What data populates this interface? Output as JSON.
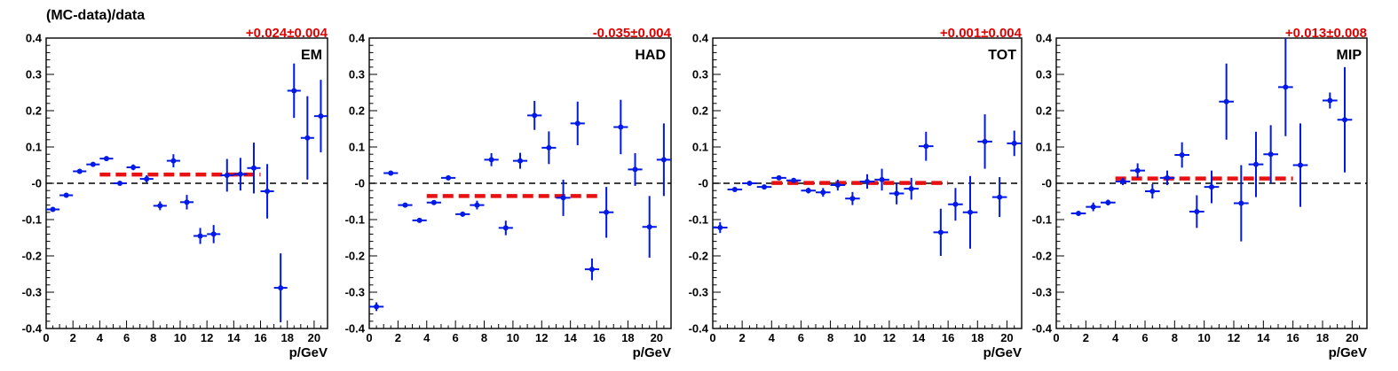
{
  "figure": {
    "ylabel": "(MC-data)/data"
  },
  "colors": {
    "points": "#0019e6",
    "fit": "#e81010",
    "zero": "#000000",
    "fit_text": "#e00000"
  },
  "chart_data": [
    {
      "type": "scatter",
      "panel_label": "EM",
      "fit_label": "+0.024±0.004",
      "xlabel": "p/GeV",
      "xlim": [
        0,
        21
      ],
      "ylim": [
        -0.4,
        0.4
      ],
      "xticks": [
        0,
        2,
        4,
        6,
        8,
        10,
        12,
        14,
        16,
        18,
        20
      ],
      "yticks": [
        "-0.4",
        "-0.3",
        "-0.2",
        "-0.1",
        "-0",
        "0.1",
        "0.2",
        "0.3",
        "0.4"
      ],
      "fit": {
        "x": [
          4,
          16
        ],
        "y": 0.024
      },
      "points": [
        {
          "x": 0.5,
          "y": -0.072,
          "err": 0.006
        },
        {
          "x": 1.5,
          "y": -0.033,
          "err": 0.005
        },
        {
          "x": 2.5,
          "y": 0.033,
          "err": 0.005
        },
        {
          "x": 3.5,
          "y": 0.052,
          "err": 0.005
        },
        {
          "x": 4.5,
          "y": 0.068,
          "err": 0.005
        },
        {
          "x": 5.5,
          "y": 0.0,
          "err": 0.005
        },
        {
          "x": 6.5,
          "y": 0.044,
          "err": 0.008
        },
        {
          "x": 7.5,
          "y": 0.012,
          "err": 0.01
        },
        {
          "x": 8.5,
          "y": -0.062,
          "err": 0.012
        },
        {
          "x": 9.5,
          "y": 0.062,
          "err": 0.018
        },
        {
          "x": 10.5,
          "y": -0.052,
          "err": 0.02
        },
        {
          "x": 11.5,
          "y": -0.145,
          "err": 0.022
        },
        {
          "x": 12.5,
          "y": -0.14,
          "err": 0.025
        },
        {
          "x": 13.5,
          "y": 0.022,
          "err": 0.045
        },
        {
          "x": 14.5,
          "y": 0.025,
          "err": 0.045
        },
        {
          "x": 15.5,
          "y": 0.042,
          "err": 0.07
        },
        {
          "x": 16.5,
          "y": -0.022,
          "err": 0.075
        },
        {
          "x": 17.5,
          "y": -0.288,
          "err": 0.095
        },
        {
          "x": 18.5,
          "y": 0.255,
          "err": 0.075
        },
        {
          "x": 19.5,
          "y": 0.125,
          "err": 0.115
        },
        {
          "x": 20.5,
          "y": 0.185,
          "err": 0.1
        }
      ]
    },
    {
      "type": "scatter",
      "panel_label": "HAD",
      "fit_label": "-0.035±0.004",
      "xlabel": "p/GeV",
      "xlim": [
        0,
        21
      ],
      "ylim": [
        -0.4,
        0.4
      ],
      "xticks": [
        0,
        2,
        4,
        6,
        8,
        10,
        12,
        14,
        16,
        18,
        20
      ],
      "yticks": [
        "-0.4",
        "-0.3",
        "-0.2",
        "-0.1",
        "-0",
        "0.1",
        "0.2",
        "0.3",
        "0.4"
      ],
      "fit": {
        "x": [
          4,
          16
        ],
        "y": -0.035
      },
      "points": [
        {
          "x": 0.5,
          "y": -0.34,
          "err": 0.012
        },
        {
          "x": 1.5,
          "y": 0.028,
          "err": 0.005
        },
        {
          "x": 2.5,
          "y": -0.06,
          "err": 0.005
        },
        {
          "x": 3.5,
          "y": -0.102,
          "err": 0.005
        },
        {
          "x": 4.5,
          "y": -0.053,
          "err": 0.005
        },
        {
          "x": 5.5,
          "y": 0.015,
          "err": 0.005
        },
        {
          "x": 6.5,
          "y": -0.085,
          "err": 0.007
        },
        {
          "x": 7.5,
          "y": -0.06,
          "err": 0.012
        },
        {
          "x": 8.5,
          "y": 0.065,
          "err": 0.018
        },
        {
          "x": 9.5,
          "y": -0.123,
          "err": 0.02
        },
        {
          "x": 10.5,
          "y": 0.062,
          "err": 0.022
        },
        {
          "x": 11.5,
          "y": 0.187,
          "err": 0.04
        },
        {
          "x": 12.5,
          "y": 0.098,
          "err": 0.045
        },
        {
          "x": 13.5,
          "y": -0.04,
          "err": 0.05
        },
        {
          "x": 14.5,
          "y": 0.165,
          "err": 0.06
        },
        {
          "x": 15.5,
          "y": -0.237,
          "err": 0.03
        },
        {
          "x": 16.5,
          "y": -0.08,
          "err": 0.07
        },
        {
          "x": 17.5,
          "y": 0.155,
          "err": 0.075
        },
        {
          "x": 18.5,
          "y": 0.038,
          "err": 0.045
        },
        {
          "x": 19.5,
          "y": -0.12,
          "err": 0.085
        },
        {
          "x": 20.5,
          "y": 0.065,
          "err": 0.1
        }
      ]
    },
    {
      "type": "scatter",
      "panel_label": "TOT",
      "fit_label": "+0.001±0.004",
      "xlabel": "p/GeV",
      "xlim": [
        0,
        21
      ],
      "ylim": [
        -0.4,
        0.4
      ],
      "xticks": [
        0,
        2,
        4,
        6,
        8,
        10,
        12,
        14,
        16,
        18,
        20
      ],
      "yticks": [
        "-0.4",
        "-0.3",
        "-0.2",
        "-0.1",
        "-0",
        "0.1",
        "0.2",
        "0.3",
        "0.4"
      ],
      "fit": {
        "x": [
          4,
          16
        ],
        "y": 0.001
      },
      "points": [
        {
          "x": 0.5,
          "y": -0.122,
          "err": 0.015
        },
        {
          "x": 1.5,
          "y": -0.017,
          "err": 0.006
        },
        {
          "x": 2.5,
          "y": 0.0,
          "err": 0.005
        },
        {
          "x": 3.5,
          "y": -0.01,
          "err": 0.005
        },
        {
          "x": 4.5,
          "y": 0.015,
          "err": 0.005
        },
        {
          "x": 5.5,
          "y": 0.008,
          "err": 0.005
        },
        {
          "x": 6.5,
          "y": -0.02,
          "err": 0.008
        },
        {
          "x": 7.5,
          "y": -0.025,
          "err": 0.012
        },
        {
          "x": 8.5,
          "y": -0.005,
          "err": 0.015
        },
        {
          "x": 9.5,
          "y": -0.042,
          "err": 0.018
        },
        {
          "x": 10.5,
          "y": 0.005,
          "err": 0.02
        },
        {
          "x": 11.5,
          "y": 0.01,
          "err": 0.03
        },
        {
          "x": 12.5,
          "y": -0.028,
          "err": 0.03
        },
        {
          "x": 13.5,
          "y": -0.015,
          "err": 0.03
        },
        {
          "x": 14.5,
          "y": 0.102,
          "err": 0.04
        },
        {
          "x": 15.5,
          "y": -0.135,
          "err": 0.065
        },
        {
          "x": 16.5,
          "y": -0.058,
          "err": 0.045
        },
        {
          "x": 17.5,
          "y": -0.08,
          "err": 0.1
        },
        {
          "x": 18.5,
          "y": 0.115,
          "err": 0.075
        },
        {
          "x": 19.5,
          "y": -0.038,
          "err": 0.055
        },
        {
          "x": 20.5,
          "y": 0.11,
          "err": 0.035
        }
      ]
    },
    {
      "type": "scatter",
      "panel_label": "MIP",
      "fit_label": "+0.013±0.008",
      "xlabel": "p/GeV",
      "xlim": [
        0,
        21
      ],
      "ylim": [
        -0.4,
        0.4
      ],
      "xticks": [
        0,
        2,
        4,
        6,
        8,
        10,
        12,
        14,
        16,
        18,
        20
      ],
      "yticks": [
        "-0.4",
        "-0.3",
        "-0.2",
        "-0.1",
        "-0",
        "0.1",
        "0.2",
        "0.3",
        "0.4"
      ],
      "fit": {
        "x": [
          4,
          16
        ],
        "y": 0.013
      },
      "points": [
        {
          "x": 1.5,
          "y": -0.083,
          "err": 0.005
        },
        {
          "x": 2.5,
          "y": -0.065,
          "err": 0.012
        },
        {
          "x": 3.5,
          "y": -0.053,
          "err": 0.008
        },
        {
          "x": 4.5,
          "y": 0.005,
          "err": 0.01
        },
        {
          "x": 5.5,
          "y": 0.035,
          "err": 0.02
        },
        {
          "x": 6.5,
          "y": -0.022,
          "err": 0.02
        },
        {
          "x": 7.5,
          "y": 0.015,
          "err": 0.02
        },
        {
          "x": 8.5,
          "y": 0.078,
          "err": 0.035
        },
        {
          "x": 9.5,
          "y": -0.078,
          "err": 0.045
        },
        {
          "x": 10.5,
          "y": -0.01,
          "err": 0.045
        },
        {
          "x": 11.5,
          "y": 0.225,
          "err": 0.105
        },
        {
          "x": 12.5,
          "y": -0.055,
          "err": 0.105
        },
        {
          "x": 13.5,
          "y": 0.052,
          "err": 0.09
        },
        {
          "x": 14.5,
          "y": 0.08,
          "err": 0.08
        },
        {
          "x": 15.5,
          "y": 0.265,
          "err": 0.135
        },
        {
          "x": 16.5,
          "y": 0.05,
          "err": 0.115
        },
        {
          "x": 18.5,
          "y": 0.228,
          "err": 0.022
        },
        {
          "x": 19.5,
          "y": 0.175,
          "err": 0.145
        }
      ]
    }
  ]
}
